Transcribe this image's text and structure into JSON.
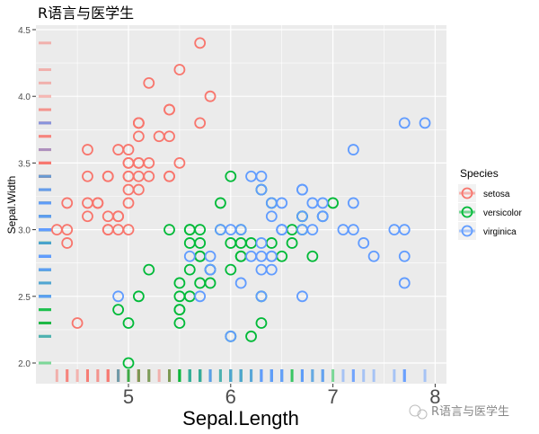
{
  "chart_data": {
    "type": "scatter",
    "title": "R语言与医学生",
    "xlabel": "Sepal.Length",
    "ylabel": "Sepal.Width",
    "xlim": [
      4.2,
      8.05
    ],
    "ylim": [
      1.95,
      4.55
    ],
    "xticks": [
      5,
      6,
      7,
      8
    ],
    "yticks": [
      2.0,
      2.5,
      3.0,
      3.5,
      4.0,
      4.5
    ],
    "ytick_labels": [
      "2.0",
      "2.5",
      "3.0",
      "3.5",
      "4.0",
      "4.5"
    ],
    "grid": true,
    "rug": true,
    "legend": {
      "title": "Species",
      "placement": "right"
    },
    "series": [
      {
        "name": "setosa",
        "color": "#F8766D",
        "points": [
          [
            5.1,
            3.5
          ],
          [
            4.9,
            3.0
          ],
          [
            4.7,
            3.2
          ],
          [
            4.6,
            3.1
          ],
          [
            5.0,
            3.6
          ],
          [
            5.4,
            3.9
          ],
          [
            4.6,
            3.4
          ],
          [
            5.0,
            3.4
          ],
          [
            4.4,
            2.9
          ],
          [
            4.9,
            3.1
          ],
          [
            5.4,
            3.7
          ],
          [
            4.8,
            3.4
          ],
          [
            4.8,
            3.0
          ],
          [
            4.3,
            3.0
          ],
          [
            5.8,
            4.0
          ],
          [
            5.7,
            4.4
          ],
          [
            5.4,
            3.9
          ],
          [
            5.1,
            3.5
          ],
          [
            5.7,
            3.8
          ],
          [
            5.1,
            3.8
          ],
          [
            5.4,
            3.4
          ],
          [
            5.1,
            3.7
          ],
          [
            4.6,
            3.6
          ],
          [
            5.1,
            3.3
          ],
          [
            4.8,
            3.4
          ],
          [
            5.0,
            3.0
          ],
          [
            5.0,
            3.4
          ],
          [
            5.2,
            3.5
          ],
          [
            5.2,
            3.4
          ],
          [
            4.7,
            3.2
          ],
          [
            4.8,
            3.1
          ],
          [
            5.4,
            3.4
          ],
          [
            5.2,
            4.1
          ],
          [
            5.5,
            4.2
          ],
          [
            4.9,
            3.1
          ],
          [
            5.0,
            3.2
          ],
          [
            5.5,
            3.5
          ],
          [
            4.9,
            3.6
          ],
          [
            4.4,
            3.0
          ],
          [
            5.1,
            3.4
          ],
          [
            5.0,
            3.5
          ],
          [
            4.5,
            2.3
          ],
          [
            4.4,
            3.2
          ],
          [
            5.0,
            3.5
          ],
          [
            5.1,
            3.8
          ],
          [
            4.8,
            3.0
          ],
          [
            5.1,
            3.8
          ],
          [
            4.6,
            3.2
          ],
          [
            5.3,
            3.7
          ],
          [
            5.0,
            3.3
          ]
        ]
      },
      {
        "name": "versicolor",
        "color": "#00BA38",
        "points": [
          [
            7.0,
            3.2
          ],
          [
            6.4,
            3.2
          ],
          [
            6.9,
            3.1
          ],
          [
            5.5,
            2.3
          ],
          [
            6.5,
            2.8
          ],
          [
            5.7,
            2.8
          ],
          [
            6.3,
            3.3
          ],
          [
            4.9,
            2.4
          ],
          [
            6.6,
            2.9
          ],
          [
            5.2,
            2.7
          ],
          [
            5.0,
            2.0
          ],
          [
            5.9,
            3.0
          ],
          [
            6.0,
            2.2
          ],
          [
            6.1,
            2.9
          ],
          [
            5.6,
            2.9
          ],
          [
            6.7,
            3.1
          ],
          [
            5.6,
            3.0
          ],
          [
            5.8,
            2.7
          ],
          [
            6.2,
            2.2
          ],
          [
            5.6,
            2.5
          ],
          [
            5.9,
            3.2
          ],
          [
            6.1,
            2.8
          ],
          [
            6.3,
            2.5
          ],
          [
            6.1,
            2.8
          ],
          [
            6.4,
            2.9
          ],
          [
            6.6,
            3.0
          ],
          [
            6.8,
            2.8
          ],
          [
            6.7,
            3.0
          ],
          [
            6.0,
            2.9
          ],
          [
            5.7,
            2.6
          ],
          [
            5.5,
            2.4
          ],
          [
            5.5,
            2.4
          ],
          [
            5.8,
            2.7
          ],
          [
            6.0,
            2.7
          ],
          [
            5.4,
            3.0
          ],
          [
            6.0,
            3.4
          ],
          [
            6.7,
            3.1
          ],
          [
            6.3,
            2.3
          ],
          [
            5.6,
            3.0
          ],
          [
            5.5,
            2.5
          ],
          [
            5.5,
            2.6
          ],
          [
            6.1,
            3.0
          ],
          [
            5.8,
            2.6
          ],
          [
            5.0,
            2.3
          ],
          [
            5.6,
            2.7
          ],
          [
            5.7,
            3.0
          ],
          [
            5.7,
            2.9
          ],
          [
            6.2,
            2.9
          ],
          [
            5.1,
            2.5
          ],
          [
            5.7,
            2.8
          ]
        ]
      },
      {
        "name": "virginica",
        "color": "#619CFF",
        "points": [
          [
            6.3,
            3.3
          ],
          [
            5.8,
            2.7
          ],
          [
            7.1,
            3.0
          ],
          [
            6.3,
            2.9
          ],
          [
            6.5,
            3.0
          ],
          [
            7.6,
            3.0
          ],
          [
            4.9,
            2.5
          ],
          [
            7.3,
            2.9
          ],
          [
            6.7,
            2.5
          ],
          [
            7.2,
            3.6
          ],
          [
            6.5,
            3.2
          ],
          [
            6.4,
            2.7
          ],
          [
            6.8,
            3.0
          ],
          [
            5.7,
            2.5
          ],
          [
            5.8,
            2.8
          ],
          [
            6.4,
            3.2
          ],
          [
            6.5,
            3.0
          ],
          [
            7.7,
            3.8
          ],
          [
            7.7,
            2.6
          ],
          [
            6.0,
            2.2
          ],
          [
            6.9,
            3.2
          ],
          [
            5.6,
            2.8
          ],
          [
            7.7,
            2.8
          ],
          [
            6.3,
            2.7
          ],
          [
            6.7,
            3.3
          ],
          [
            7.2,
            3.2
          ],
          [
            6.2,
            2.8
          ],
          [
            6.1,
            3.0
          ],
          [
            6.4,
            2.8
          ],
          [
            7.2,
            3.0
          ],
          [
            7.4,
            2.8
          ],
          [
            7.9,
            3.8
          ],
          [
            6.4,
            2.8
          ],
          [
            6.3,
            2.8
          ],
          [
            6.1,
            2.6
          ],
          [
            7.7,
            3.0
          ],
          [
            6.3,
            3.4
          ],
          [
            6.4,
            3.1
          ],
          [
            6.0,
            3.0
          ],
          [
            6.9,
            3.1
          ],
          [
            6.7,
            3.1
          ],
          [
            6.9,
            3.1
          ],
          [
            5.8,
            2.7
          ],
          [
            6.8,
            3.2
          ],
          [
            6.7,
            3.3
          ],
          [
            6.7,
            3.0
          ],
          [
            6.3,
            2.5
          ],
          [
            6.5,
            3.0
          ],
          [
            6.2,
            3.4
          ],
          [
            5.9,
            3.0
          ]
        ]
      }
    ]
  },
  "watermark": "R语言与医学生"
}
